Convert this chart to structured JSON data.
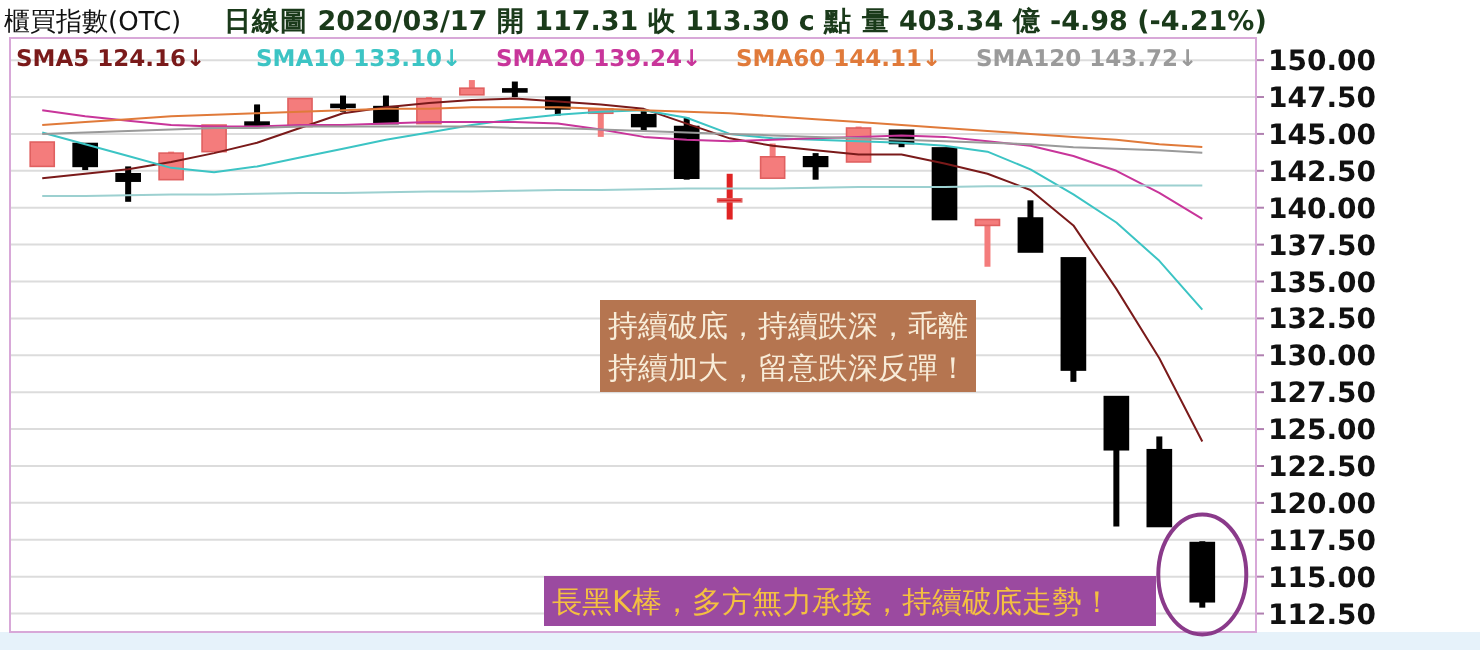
{
  "chart_data": {
    "type": "candlestick",
    "title": "櫃買指數(OTC)",
    "subtitle": "日線圖  2020/03/17  開 117.31  收 113.30 c 點  量 403.34 億  -4.98 (-4.21%)",
    "categories": [
      null,
      null,
      null,
      null,
      null,
      null,
      null,
      null,
      null,
      null,
      null,
      null,
      null,
      null,
      null,
      null,
      null,
      null,
      null,
      null,
      null,
      null,
      null,
      null,
      null,
      null,
      null,
      null
    ],
    "ohlc": [
      [
        142.8,
        144.45,
        142.8,
        144.45
      ],
      [
        144.35,
        144.35,
        142.55,
        142.8
      ],
      [
        142.3,
        142.8,
        140.4,
        141.8
      ],
      [
        141.9,
        143.8,
        141.9,
        143.7
      ],
      [
        143.8,
        145.6,
        143.8,
        145.6
      ],
      [
        145.8,
        147.0,
        145.6,
        145.6
      ],
      [
        145.5,
        147.4,
        145.5,
        147.4
      ],
      [
        147.0,
        147.6,
        146.5,
        146.85
      ],
      [
        146.85,
        147.6,
        145.7,
        145.7
      ],
      [
        145.7,
        147.5,
        145.7,
        147.4
      ],
      [
        147.65,
        148.65,
        147.65,
        148.1
      ],
      [
        148.05,
        148.55,
        147.5,
        147.9
      ],
      [
        147.5,
        147.5,
        146.25,
        146.7
      ],
      [
        146.4,
        146.7,
        144.8,
        146.7
      ],
      [
        146.3,
        146.6,
        145.2,
        145.5
      ],
      [
        145.5,
        146.1,
        141.9,
        142.0
      ],
      [
        140.5,
        142.3,
        139.2,
        140.6
      ],
      [
        142.0,
        144.35,
        142.0,
        143.45
      ],
      [
        143.45,
        143.7,
        141.9,
        142.8
      ],
      [
        143.1,
        145.5,
        143.1,
        145.4
      ],
      [
        145.25,
        145.25,
        144.1,
        144.35
      ],
      [
        144.05,
        144.05,
        139.2,
        139.2
      ],
      [
        138.8,
        139.2,
        136.0,
        139.2
      ],
      [
        139.3,
        140.5,
        137.0,
        137.0
      ],
      [
        136.6,
        136.6,
        128.2,
        129.0
      ],
      [
        127.2,
        127.2,
        118.4,
        123.6
      ],
      [
        123.6,
        124.5,
        118.4,
        118.4
      ],
      [
        117.31,
        117.4,
        112.9,
        113.3
      ]
    ],
    "colors": [
      "#f47c7c",
      "#000000",
      "#000000",
      "#f47c7c",
      "#f47c7c",
      "#000000",
      "#f47c7c",
      "#000000",
      "#000000",
      "#f47c7c",
      "#f47c7c",
      "#000000",
      "#000000",
      "#f47c7c",
      "#000000",
      "#000000",
      "#e02424",
      "#f47c7c",
      "#000000",
      "#f47c7c",
      "#000000",
      "#000000",
      "#f47c7c",
      "#000000",
      "#000000",
      "#000000",
      "#000000",
      "#000000"
    ],
    "series": [
      {
        "type": "line",
        "name": "SMA5 124.16↓",
        "color": "#7a1a1a",
        "values": [
          142.0,
          142.3,
          142.6,
          143.1,
          143.7,
          144.4,
          145.4,
          146.4,
          146.8,
          147.1,
          147.3,
          147.4,
          147.2,
          147.0,
          146.7,
          145.7,
          144.7,
          144.2,
          143.9,
          143.6,
          143.6,
          143.0,
          142.3,
          141.2,
          138.8,
          134.5,
          129.8,
          124.16
        ]
      },
      {
        "type": "line",
        "name": "SMA10 133.10↓",
        "color": "#3cc4c4",
        "values": [
          145.1,
          144.3,
          143.5,
          142.7,
          142.4,
          142.8,
          143.4,
          144.0,
          144.6,
          145.1,
          145.6,
          146.0,
          146.3,
          146.5,
          146.6,
          146.1,
          145.0,
          144.7,
          144.6,
          144.5,
          144.4,
          144.2,
          143.8,
          142.6,
          140.9,
          139.0,
          136.4,
          133.1
        ]
      },
      {
        "type": "line",
        "name": "SMA20 139.24↓",
        "color": "#c8359a",
        "values": [
          146.6,
          146.2,
          145.9,
          145.6,
          145.5,
          145.5,
          145.6,
          145.6,
          145.7,
          145.8,
          145.8,
          145.8,
          145.7,
          145.3,
          144.8,
          144.6,
          144.5,
          144.6,
          144.7,
          144.8,
          144.9,
          144.8,
          144.5,
          144.2,
          143.5,
          142.5,
          141.0,
          139.24
        ]
      },
      {
        "type": "line",
        "name": "SMA60 144.11↓",
        "color": "#e07a3a",
        "values": [
          145.6,
          145.8,
          146.0,
          146.2,
          146.3,
          146.4,
          146.5,
          146.6,
          146.7,
          146.7,
          146.8,
          146.8,
          146.8,
          146.7,
          146.6,
          146.5,
          146.4,
          146.2,
          146.0,
          145.8,
          145.6,
          145.4,
          145.2,
          145.0,
          144.8,
          144.6,
          144.3,
          144.11
        ]
      },
      {
        "type": "line",
        "name": "SMA120 143.72↓",
        "color": "#9a9a9a",
        "values": [
          145.0,
          145.1,
          145.2,
          145.3,
          145.4,
          145.4,
          145.5,
          145.5,
          145.5,
          145.5,
          145.5,
          145.4,
          145.4,
          145.3,
          145.2,
          145.1,
          145.0,
          144.9,
          144.8,
          144.7,
          144.6,
          144.5,
          144.4,
          144.3,
          144.1,
          144.0,
          143.9,
          143.72
        ]
      },
      {
        "type": "line",
        "color": "#9cd0d0",
        "values": [
          140.8,
          140.8,
          140.85,
          140.9,
          140.9,
          140.95,
          141.0,
          141.0,
          141.05,
          141.1,
          141.1,
          141.15,
          141.2,
          141.2,
          141.25,
          141.3,
          141.3,
          141.3,
          141.35,
          141.4,
          141.4,
          141.4,
          141.45,
          141.45,
          141.5,
          141.5,
          141.5,
          141.5
        ]
      }
    ],
    "ylim": [
      111.25,
      151.5
    ],
    "yticks": [
      {
        "value": 112.5,
        "label": "112.50"
      },
      {
        "value": 115,
        "label": "115.00"
      },
      {
        "value": 117.5,
        "label": "117.50"
      },
      {
        "value": 120,
        "label": "120.00"
      },
      {
        "value": 122.5,
        "label": "122.50"
      },
      {
        "value": 125,
        "label": "125.00"
      },
      {
        "value": 127.5,
        "label": "127.50"
      },
      {
        "value": 130,
        "label": "130.00"
      },
      {
        "value": 132.5,
        "label": "132.50"
      },
      {
        "value": 135,
        "label": "135.00"
      },
      {
        "value": 137.5,
        "label": "137.50"
      },
      {
        "value": 140,
        "label": "140.00"
      },
      {
        "value": 142.5,
        "label": "142.50"
      },
      {
        "value": 145,
        "label": "145.00"
      },
      {
        "value": 147.5,
        "label": "147.50"
      },
      {
        "value": 150,
        "label": "150.00"
      }
    ],
    "grid": "y",
    "legend": "top left",
    "annotations": [
      "持續破底，持續跌深，乖離持續加大，留意跌深反彈！",
      "長黑K棒，多方無力承接，持續破底走勢！"
    ]
  }
}
